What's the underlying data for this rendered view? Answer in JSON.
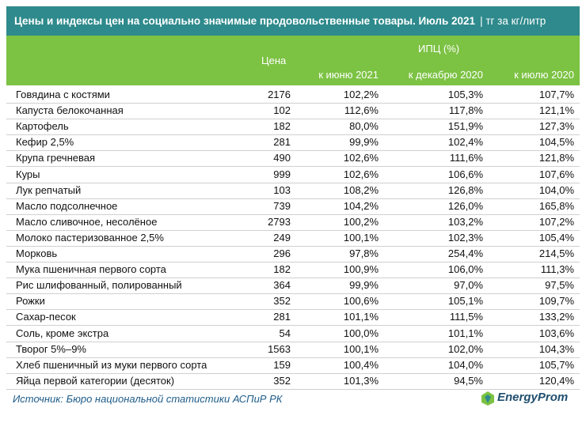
{
  "header": {
    "title": "Цены и индексы цен на социально значимые продовольственные товары. Июль 2021",
    "unit": "| тг за кг/литр"
  },
  "table": {
    "columns": {
      "name": "",
      "price": "Цена",
      "cpi": "ИПЦ (%)",
      "cpi_sub": [
        "к июню 2021",
        "к декабрю 2020",
        "к июлю 2020"
      ]
    },
    "rows": [
      [
        "Говядина с костями",
        2176,
        "102,2%",
        "105,3%",
        "107,7%"
      ],
      [
        "Капуста белокочанная",
        102,
        "112,6%",
        "117,8%",
        "121,1%"
      ],
      [
        "Картофель",
        182,
        "80,0%",
        "151,9%",
        "127,3%"
      ],
      [
        "Кефир 2,5%",
        281,
        "99,9%",
        "102,4%",
        "104,5%"
      ],
      [
        "Крупа гречневая",
        490,
        "102,6%",
        "111,6%",
        "121,8%"
      ],
      [
        "Куры",
        999,
        "102,6%",
        "106,6%",
        "107,6%"
      ],
      [
        "Лук репчатый",
        103,
        "108,2%",
        "126,8%",
        "104,0%"
      ],
      [
        "Масло подсолнечное",
        739,
        "104,2%",
        "126,0%",
        "165,8%"
      ],
      [
        "Масло сливочное, несолёное",
        2793,
        "100,2%",
        "103,2%",
        "107,2%"
      ],
      [
        "Молоко пастеризованное 2,5%",
        249,
        "100,1%",
        "102,3%",
        "105,4%"
      ],
      [
        "Морковь",
        296,
        "97,8%",
        "254,4%",
        "214,5%"
      ],
      [
        "Мука пшеничная первого сорта",
        182,
        "100,9%",
        "106,0%",
        "111,3%"
      ],
      [
        "Рис шлифованный, полированный",
        364,
        "99,9%",
        "97,0%",
        "97,5%"
      ],
      [
        "Рожки",
        352,
        "100,6%",
        "105,1%",
        "109,7%"
      ],
      [
        "Сахар-песок",
        281,
        "101,1%",
        "111,5%",
        "133,2%"
      ],
      [
        "Соль, кроме экстра",
        54,
        "100,0%",
        "101,1%",
        "103,6%"
      ],
      [
        "Творог 5%–9%",
        1563,
        "100,1%",
        "102,0%",
        "104,3%"
      ],
      [
        "Хлеб пшеничный из муки первого сорта",
        159,
        "100,4%",
        "104,0%",
        "105,7%"
      ],
      [
        "Яйца первой категории (десяток)",
        352,
        "101,3%",
        "94,5%",
        "120,4%"
      ]
    ]
  },
  "footer": {
    "source": "Источник: Бюро национальной статистики АСПиР РК",
    "logo": "EnergyProm"
  }
}
